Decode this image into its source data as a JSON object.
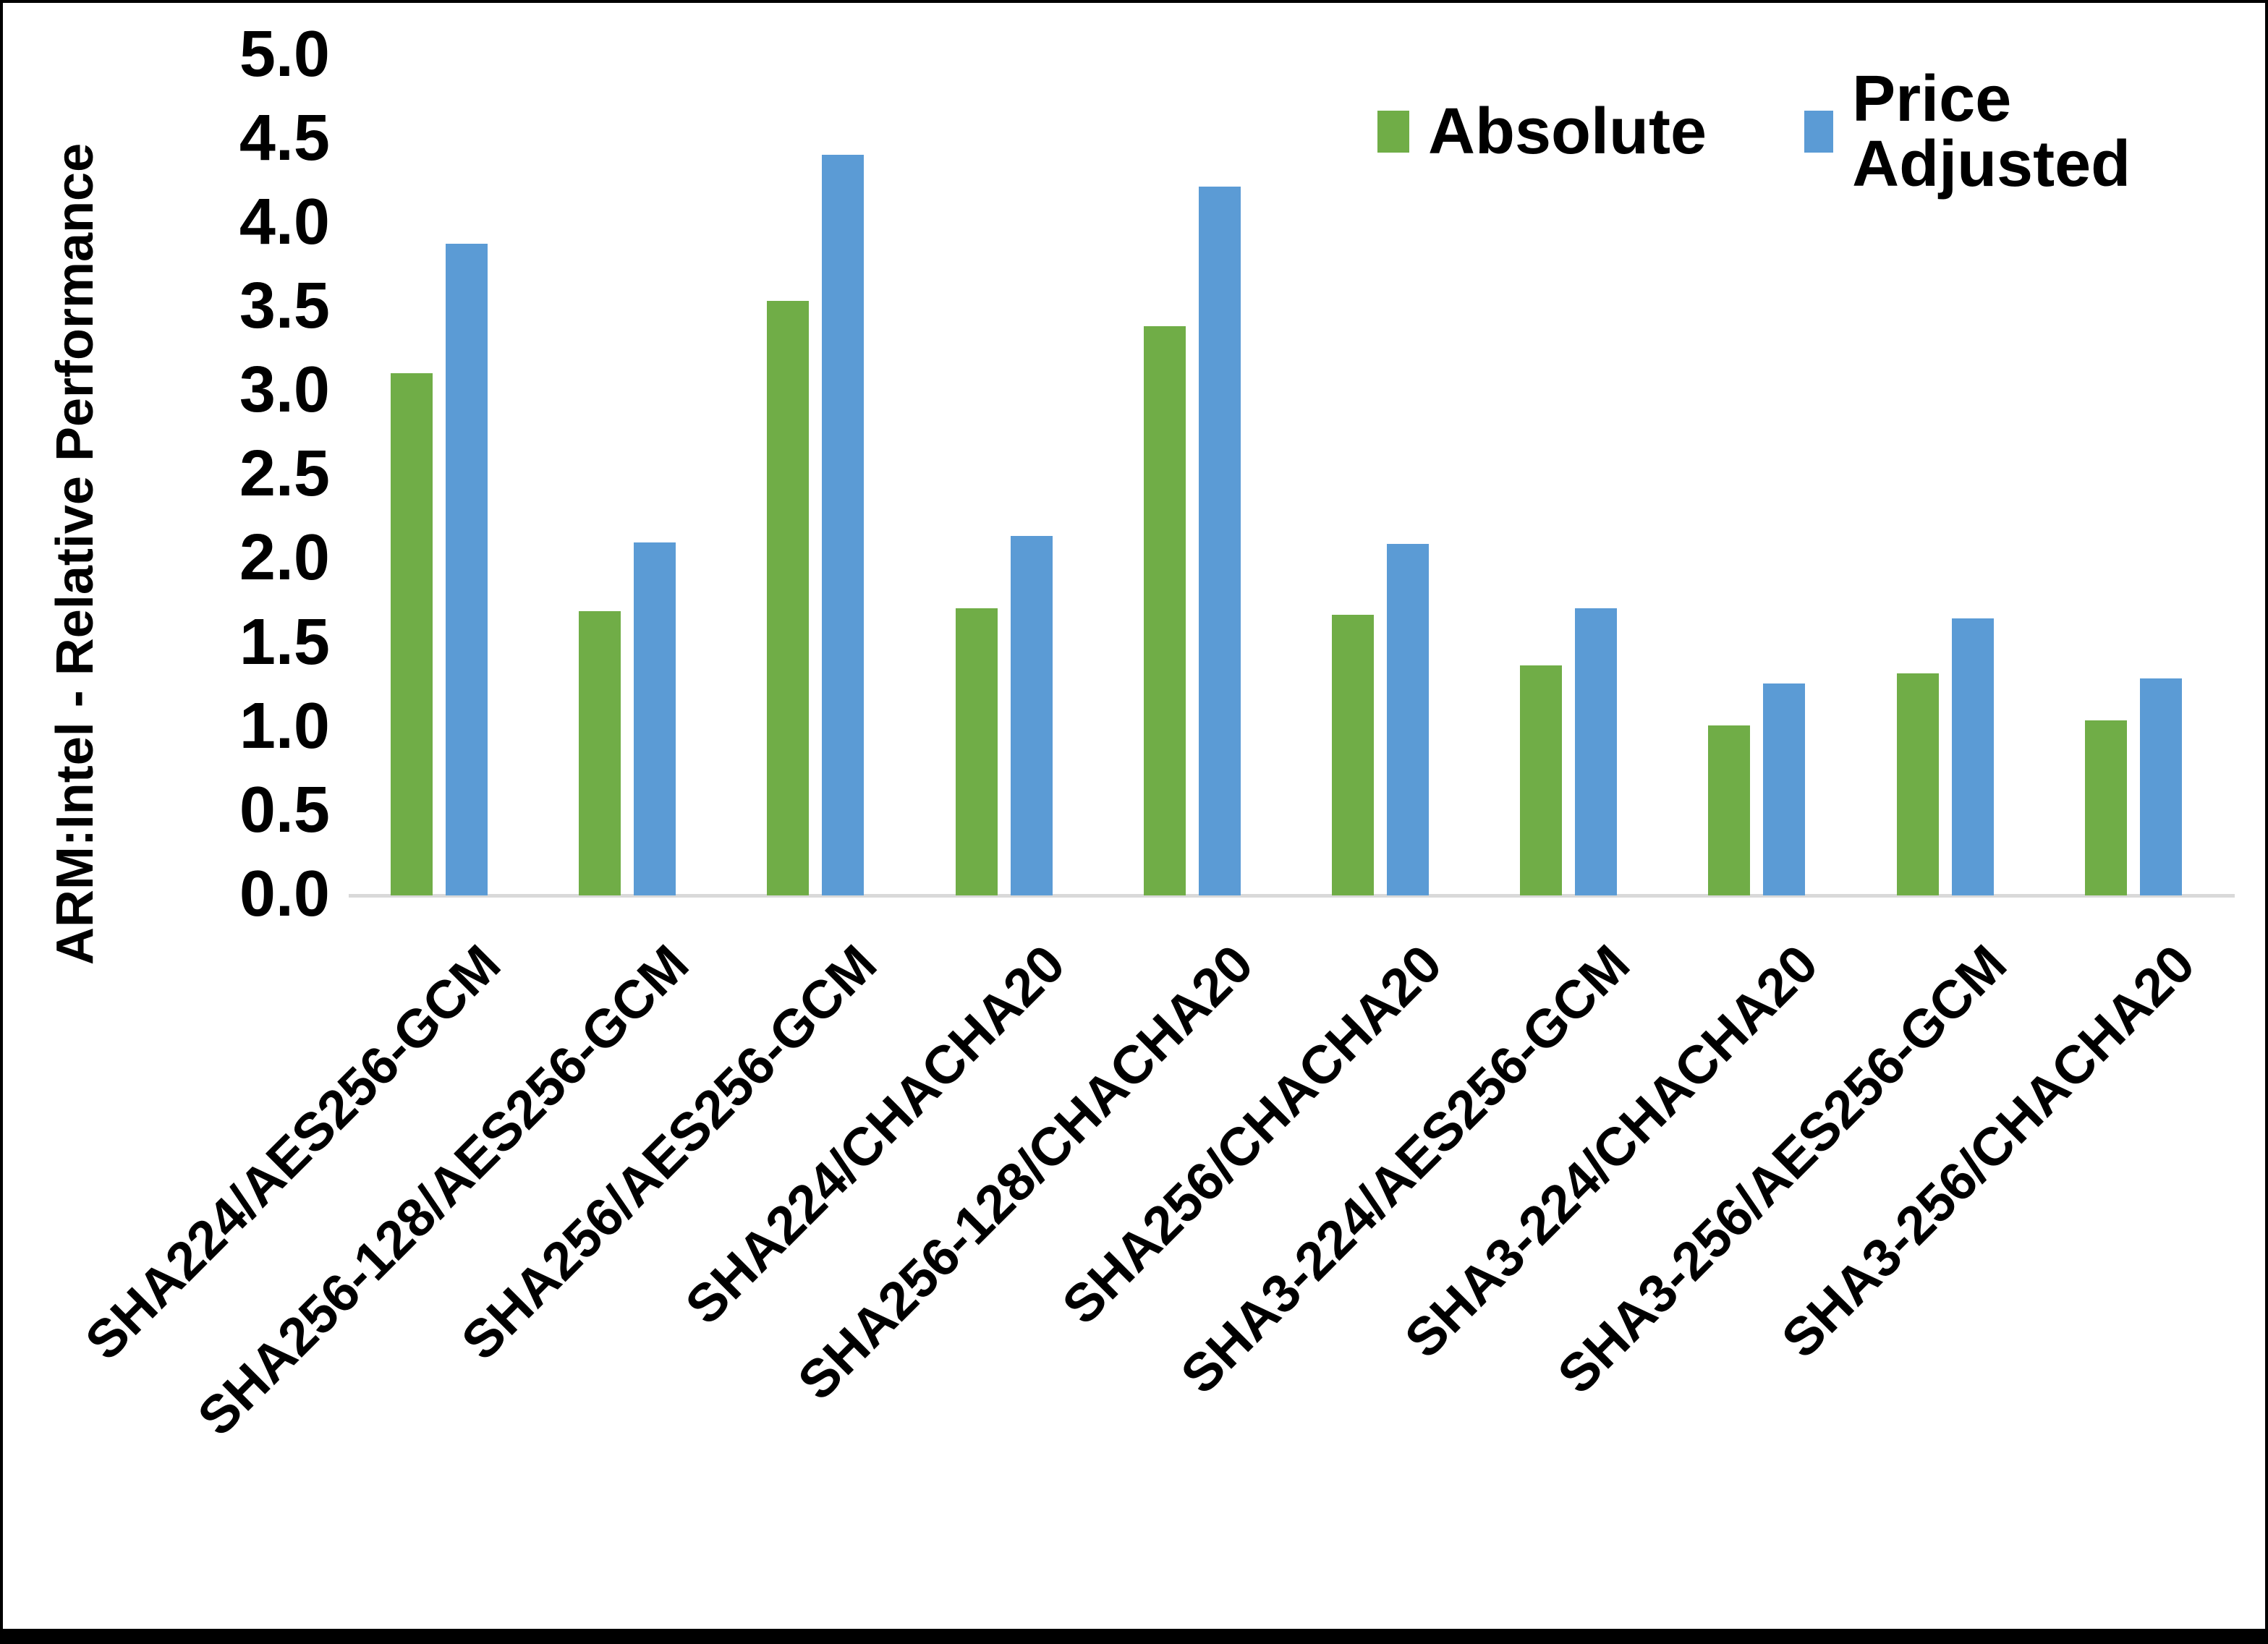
{
  "chart_data": {
    "type": "bar",
    "title": "",
    "ylabel": "ARM:Intel - Relative Performance",
    "xlabel": "",
    "ylim": [
      0.0,
      5.0
    ],
    "y_tick_step": 0.5,
    "y_ticks": [
      "0.0",
      "0.5",
      "1.0",
      "1.5",
      "2.0",
      "2.5",
      "3.0",
      "3.5",
      "4.0",
      "4.5",
      "5.0"
    ],
    "grid": "off",
    "legend_position": "top-right",
    "categories": [
      "SHA224/AES256-GCM",
      "SHA256-128/AES256-GCM",
      "SHA256/AES256-GCM",
      "SHA224/CHACHA20",
      "SHA256-128/CHACHA20",
      "SHA256/CHACHA20",
      "SHA3-224/AES256-GCM",
      "SHA3-224/CHACHA20",
      "SHA3-256/AES256-GCM",
      "SHA3-256/CHACHA20"
    ],
    "series": [
      {
        "name": "Absolute",
        "color": "#70AD47",
        "values": [
          3.11,
          1.69,
          3.54,
          1.71,
          3.39,
          1.67,
          1.37,
          1.01,
          1.32,
          1.04
        ]
      },
      {
        "name": "Price Adjusted",
        "color": "#5B9BD5",
        "values": [
          3.88,
          2.1,
          4.41,
          2.14,
          4.22,
          2.09,
          1.71,
          1.26,
          1.65,
          1.29
        ]
      }
    ],
    "axis_line_color": "#D9D9D9",
    "text_color": "#000000",
    "background_color": "#FFFFFF"
  }
}
